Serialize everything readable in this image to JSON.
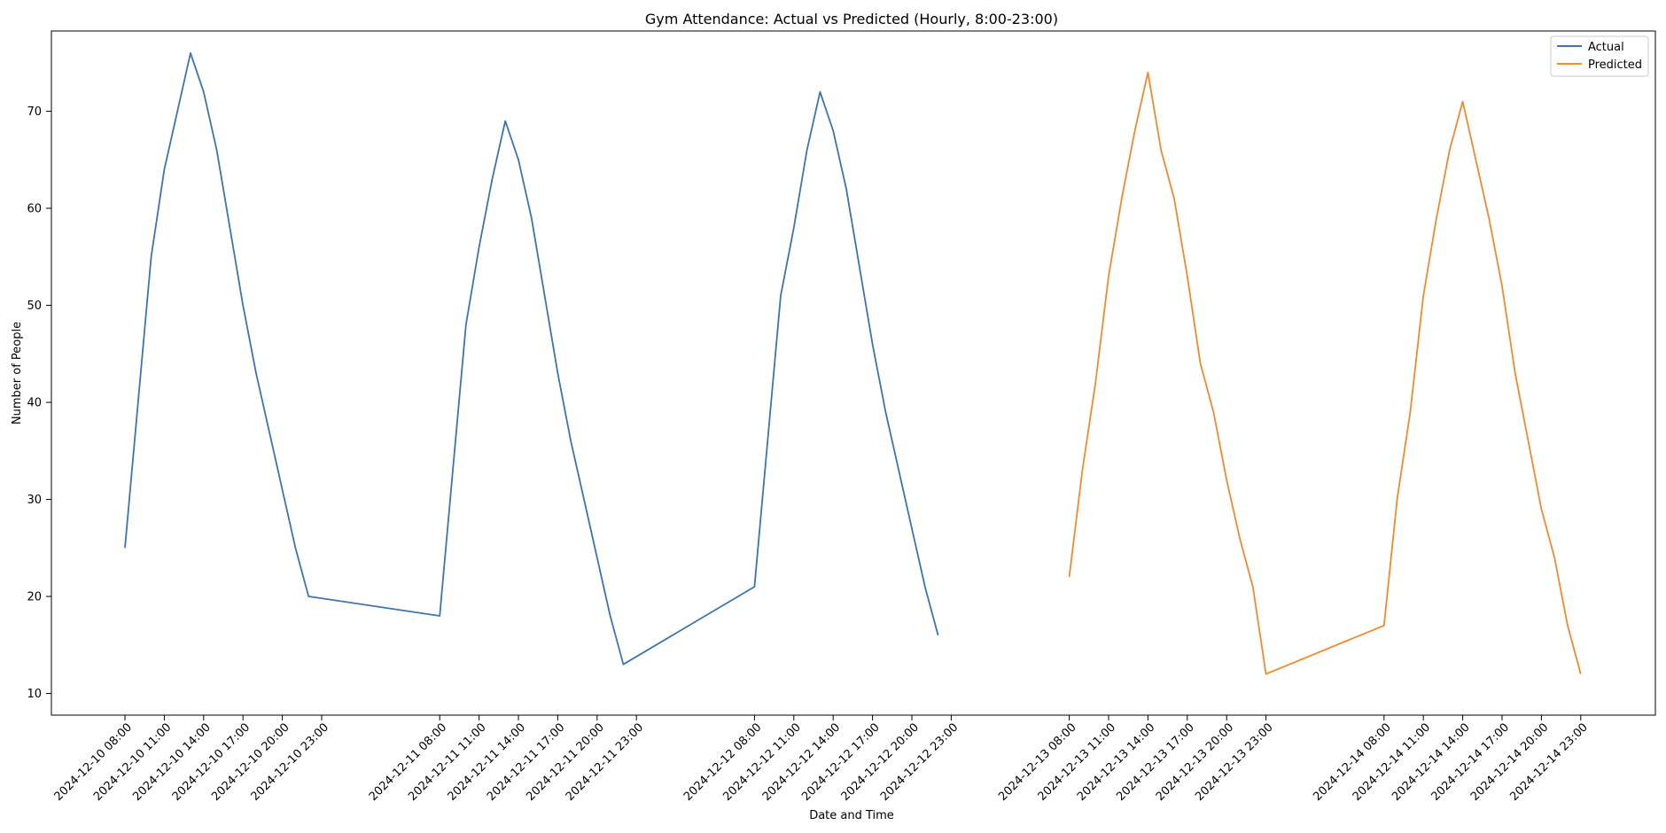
{
  "chart_data": {
    "type": "line",
    "title": "Gym Attendance: Actual vs Predicted (Hourly, 8:00-23:00)",
    "xlabel": "Date and Time",
    "ylabel": "Number of People",
    "ylim": [
      9,
      79.5
    ],
    "yticks": [
      10,
      20,
      30,
      40,
      50,
      60,
      70
    ],
    "xticks": [
      "2024-12-10 08:00",
      "2024-12-10 11:00",
      "2024-12-10 14:00",
      "2024-12-10 17:00",
      "2024-12-10 20:00",
      "2024-12-10 23:00",
      "2024-12-11 08:00",
      "2024-12-11 11:00",
      "2024-12-11 14:00",
      "2024-12-11 17:00",
      "2024-12-11 20:00",
      "2024-12-11 23:00",
      "2024-12-12 08:00",
      "2024-12-12 11:00",
      "2024-12-12 14:00",
      "2024-12-12 17:00",
      "2024-12-12 20:00",
      "2024-12-12 23:00",
      "2024-12-13 08:00",
      "2024-12-13 11:00",
      "2024-12-13 14:00",
      "2024-12-13 17:00",
      "2024-12-13 20:00",
      "2024-12-13 23:00",
      "2024-12-14 08:00",
      "2024-12-14 11:00",
      "2024-12-14 14:00",
      "2024-12-14 17:00",
      "2024-12-14 20:00",
      "2024-12-14 23:00"
    ],
    "legend_position": "top-right",
    "grid": false,
    "series": [
      {
        "name": "Actual",
        "color": "#3a75b0",
        "days": [
          {
            "date": "2024-12-10",
            "values": [
              25,
              40,
              55,
              64,
              70,
              76,
              72,
              66,
              58,
              50,
              43,
              37,
              31,
              25,
              20
            ]
          },
          {
            "date": "2024-12-11",
            "values": [
              18,
              33,
              48,
              56,
              63,
              69,
              65,
              59,
              51,
              43,
              36,
              30,
              24,
              18,
              13
            ]
          },
          {
            "date": "2024-12-12",
            "values": [
              21,
              36,
              51,
              58,
              66,
              72,
              68,
              62,
              54,
              46,
              39,
              33,
              27,
              21,
              16
            ]
          }
        ]
      },
      {
        "name": "Predicted",
        "color": "#f28a2b",
        "days": [
          {
            "date": "2024-12-13",
            "values": [
              22,
              33,
              42,
              53,
              61,
              68,
              74,
              66,
              61,
              53,
              44,
              39,
              32,
              26,
              21,
              12
            ]
          },
          {
            "date": "2024-12-14",
            "values": [
              17,
              30,
              39,
              51,
              59,
              66,
              71,
              65,
              59,
              52,
              43,
              36,
              29,
              24,
              17,
              12
            ]
          }
        ]
      }
    ]
  }
}
